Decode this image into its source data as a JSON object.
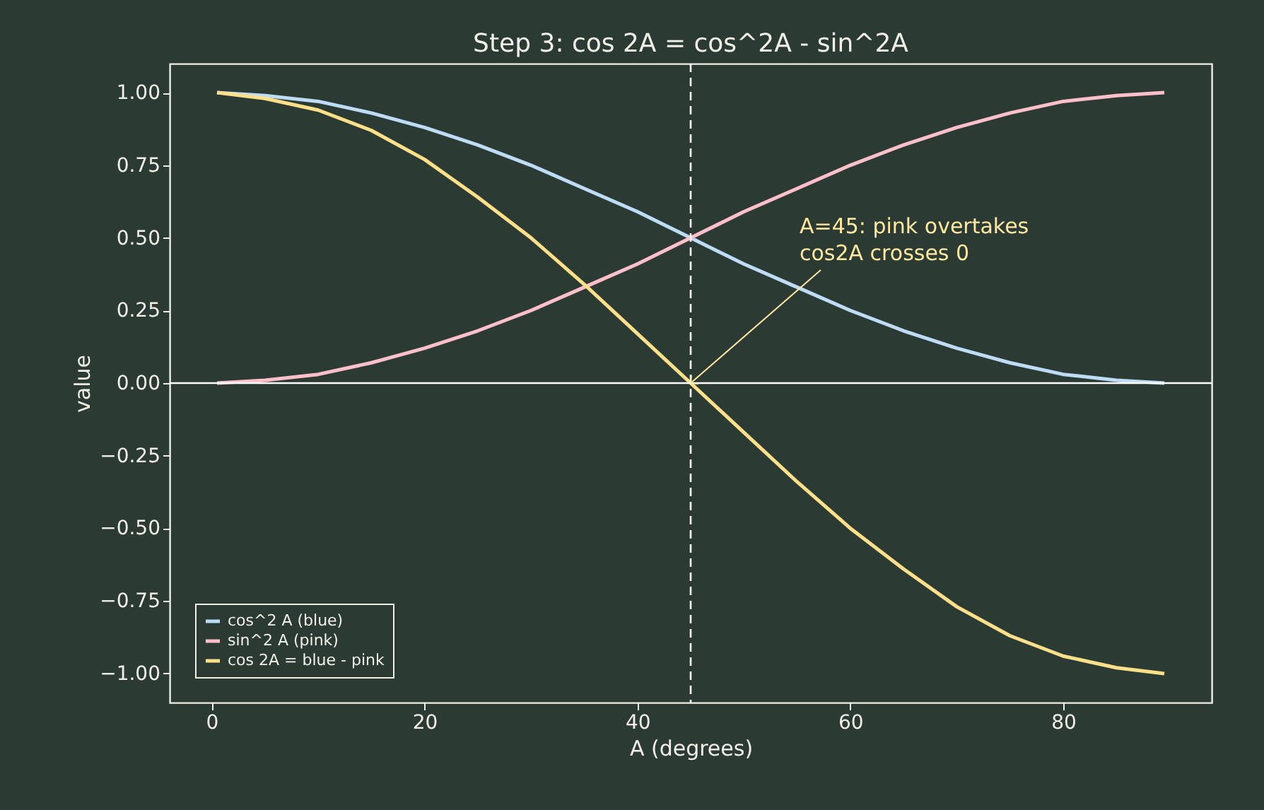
{
  "chart_data": {
    "type": "line",
    "title": "Step 3: cos 2A = cos^2A - sin^2A",
    "xlabel": "A (degrees)",
    "ylabel": "value",
    "x": [
      0.5,
      5,
      10,
      15,
      20,
      25,
      30,
      35,
      40,
      45,
      50,
      55,
      60,
      65,
      70,
      75,
      80,
      85,
      89.5
    ],
    "series": [
      {
        "name": "cos^2 A (blue)",
        "color": "#bfdcf7",
        "values": [
          1.0,
          0.99,
          0.97,
          0.93,
          0.88,
          0.82,
          0.75,
          0.67,
          0.59,
          0.5,
          0.41,
          0.33,
          0.25,
          0.18,
          0.12,
          0.07,
          0.03,
          0.01,
          0.0
        ]
      },
      {
        "name": "sin^2 A (pink)",
        "color": "#ffc0cb",
        "values": [
          0.0,
          0.01,
          0.03,
          0.07,
          0.12,
          0.18,
          0.25,
          0.33,
          0.41,
          0.5,
          0.59,
          0.67,
          0.75,
          0.82,
          0.88,
          0.93,
          0.97,
          0.99,
          1.0
        ]
      },
      {
        "name": "cos 2A = blue - pink",
        "color": "#ffe08a",
        "values": [
          1.0,
          0.98,
          0.94,
          0.87,
          0.77,
          0.64,
          0.5,
          0.34,
          0.17,
          0.0,
          -0.17,
          -0.34,
          -0.5,
          -0.64,
          -0.77,
          -0.87,
          -0.94,
          -0.98,
          -1.0
        ]
      }
    ],
    "xlim": [
      -3.95,
      93.95
    ],
    "xticks": [
      0,
      20,
      40,
      60,
      80
    ],
    "ylim": [
      -1.1,
      1.1
    ],
    "yticks": [
      {
        "value": -1,
        "label": "−1.00"
      },
      {
        "value": -0.75,
        "label": "−0.75"
      },
      {
        "value": -0.5,
        "label": "−0.50"
      },
      {
        "value": -0.25,
        "label": "−0.25"
      },
      {
        "value": 0,
        "label": "0.00"
      },
      {
        "value": 0.25,
        "label": "0.25"
      },
      {
        "value": 0.5,
        "label": "0.50"
      },
      {
        "value": 0.75,
        "label": "0.75"
      },
      {
        "value": 1,
        "label": "1.00"
      }
    ],
    "ref_lines": [
      {
        "axis": "y",
        "value": 0,
        "color": "#ffffff",
        "line_style": "solid"
      },
      {
        "axis": "x",
        "value": 45,
        "color": "#ffffff",
        "line_style": "dashed"
      }
    ],
    "annotations": [
      {
        "text": "A=45: pink overtakes\ncos2A crosses 0",
        "x": 45,
        "y": 0
      }
    ],
    "legend": "bottom left",
    "grid": false,
    "marker": "none",
    "line_style": "solid"
  }
}
